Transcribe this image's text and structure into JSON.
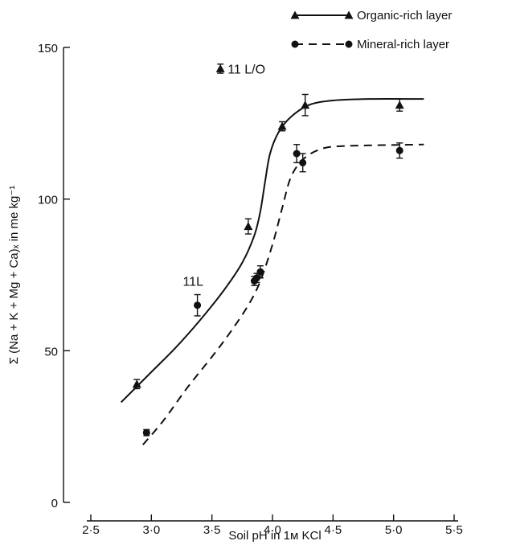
{
  "chart_data": {
    "type": "scatter",
    "xlabel": "Soil pH in 1м KCl",
    "ylabel": "Σ (Na + K + Mg + Ca)ₓ in me kg⁻¹",
    "xlim": [
      2.5,
      5.5
    ],
    "ylim": [
      0,
      150
    ],
    "x_ticks": [
      2.5,
      3.0,
      3.5,
      4.0,
      4.5,
      5.0,
      5.5
    ],
    "x_tick_labels": [
      "2·5",
      "3·0",
      "3·5",
      "4·0",
      "4·5",
      "5·0",
      "5·5"
    ],
    "y_ticks": [
      0,
      50,
      100,
      150
    ],
    "y_tick_labels": [
      "0",
      "50",
      "100",
      "150"
    ],
    "grid": false,
    "legend_position": "top-right",
    "series": [
      {
        "name": "Organic-rich layer",
        "marker": "triangle",
        "line_style": "solid",
        "points": [
          {
            "x": 2.88,
            "y": 39,
            "err": 1.5
          },
          {
            "x": 3.8,
            "y": 91,
            "err": 2.5
          },
          {
            "x": 4.08,
            "y": 124,
            "err": 1.5
          },
          {
            "x": 4.27,
            "y": 131,
            "err": 3.5
          },
          {
            "x": 5.05,
            "y": 131,
            "err": 2.0
          }
        ],
        "fit": [
          {
            "x": 2.75,
            "y": 33
          },
          {
            "x": 3.0,
            "y": 43
          },
          {
            "x": 3.2,
            "y": 51
          },
          {
            "x": 3.4,
            "y": 60
          },
          {
            "x": 3.6,
            "y": 70
          },
          {
            "x": 3.75,
            "y": 79
          },
          {
            "x": 3.85,
            "y": 88
          },
          {
            "x": 3.9,
            "y": 96
          },
          {
            "x": 3.94,
            "y": 106
          },
          {
            "x": 3.98,
            "y": 115
          },
          {
            "x": 4.05,
            "y": 122
          },
          {
            "x": 4.15,
            "y": 127
          },
          {
            "x": 4.3,
            "y": 131
          },
          {
            "x": 4.5,
            "y": 132.5
          },
          {
            "x": 4.8,
            "y": 133
          },
          {
            "x": 5.25,
            "y": 133
          }
        ]
      },
      {
        "name": "Mineral-rich layer",
        "marker": "circle",
        "line_style": "dashed",
        "points": [
          {
            "x": 2.96,
            "y": 23,
            "err": 1.0
          },
          {
            "x": 3.38,
            "y": 65,
            "err": 3.5
          },
          {
            "x": 3.85,
            "y": 73,
            "err": 1.5
          },
          {
            "x": 3.87,
            "y": 74,
            "err": 1.5
          },
          {
            "x": 3.9,
            "y": 76,
            "err": 2.0
          },
          {
            "x": 4.2,
            "y": 115,
            "err": 3.0
          },
          {
            "x": 4.25,
            "y": 112,
            "err": 3.0
          },
          {
            "x": 5.05,
            "y": 116,
            "err": 2.5
          }
        ],
        "fit": [
          {
            "x": 2.93,
            "y": 19
          },
          {
            "x": 3.1,
            "y": 27
          },
          {
            "x": 3.3,
            "y": 38
          },
          {
            "x": 3.5,
            "y": 48
          },
          {
            "x": 3.65,
            "y": 56
          },
          {
            "x": 3.8,
            "y": 65
          },
          {
            "x": 3.9,
            "y": 73
          },
          {
            "x": 4.0,
            "y": 85
          },
          {
            "x": 4.08,
            "y": 97
          },
          {
            "x": 4.15,
            "y": 107
          },
          {
            "x": 4.25,
            "y": 113
          },
          {
            "x": 4.4,
            "y": 116.5
          },
          {
            "x": 4.6,
            "y": 117.5
          },
          {
            "x": 5.25,
            "y": 118
          }
        ]
      }
    ],
    "annotations": [
      {
        "text": "11 L/O",
        "x": 3.57,
        "y": 143,
        "marker": "triangle",
        "err": 1.5
      },
      {
        "text": "11L",
        "x": 3.26,
        "y": 73
      }
    ]
  }
}
